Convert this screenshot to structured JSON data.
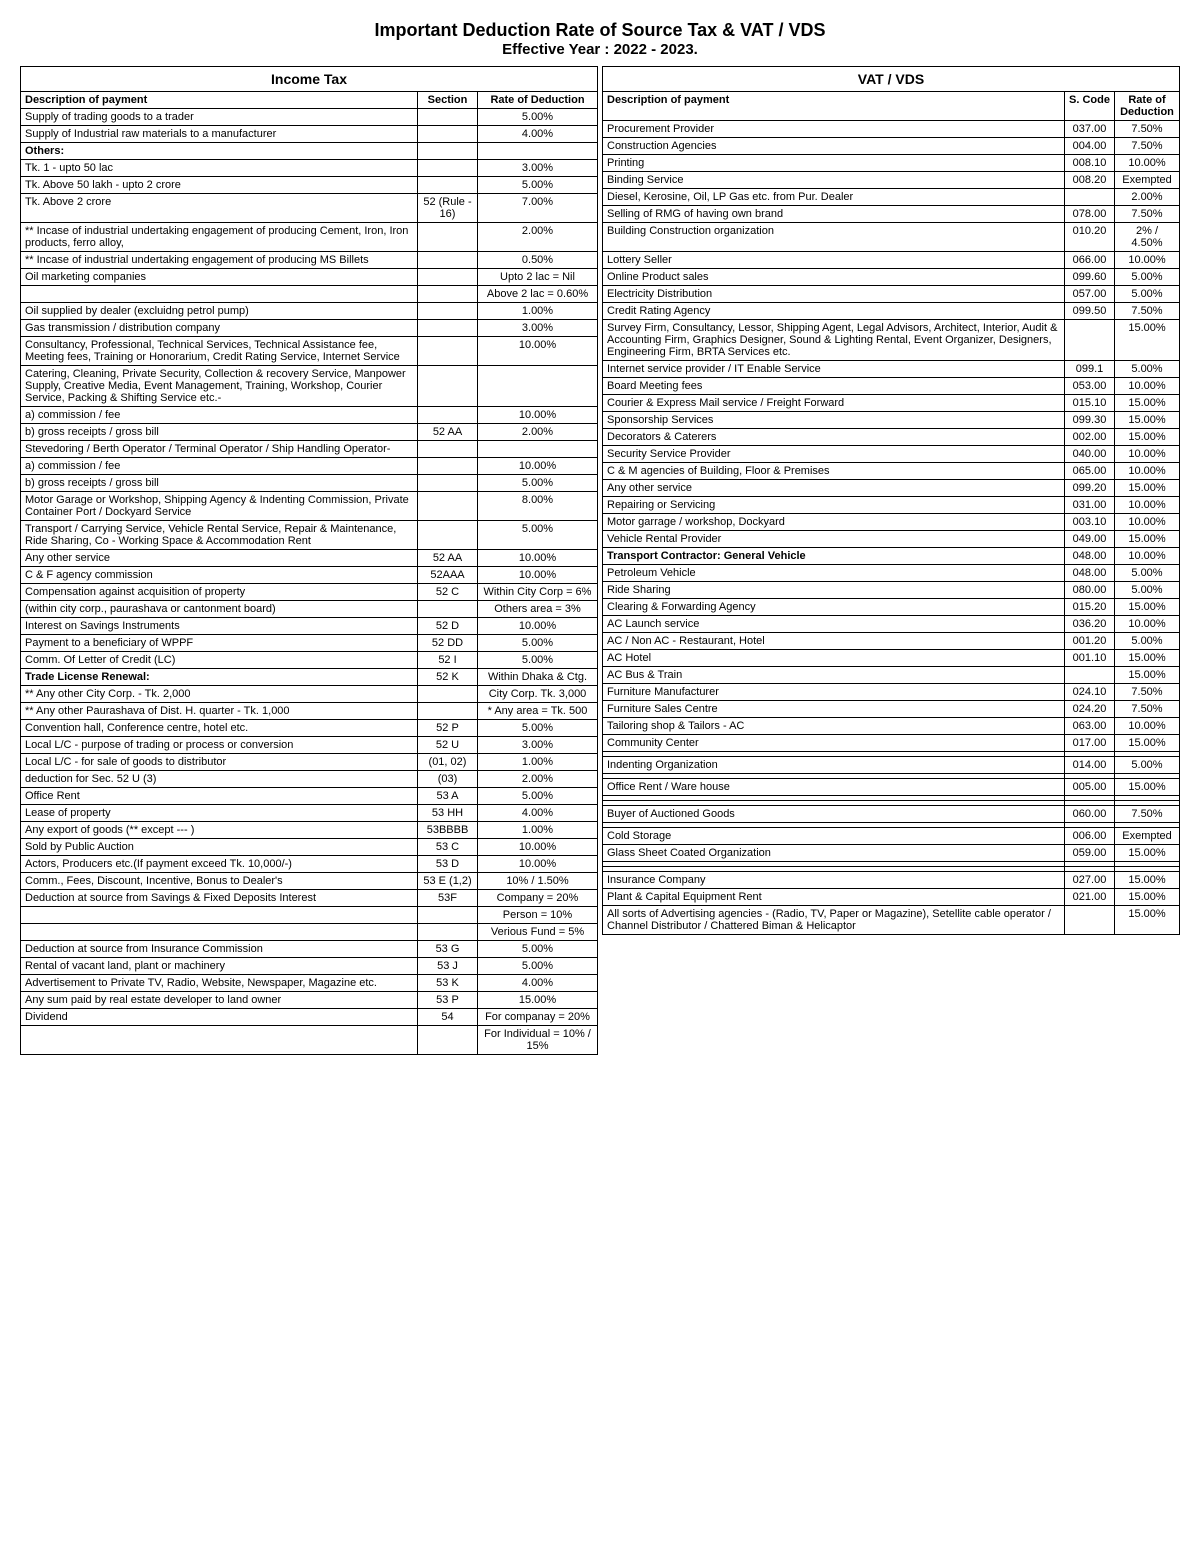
{
  "title": "Important Deduction Rate of Source Tax & VAT / VDS",
  "subtitle": "Effective Year : 2022 - 2023.",
  "left": {
    "heading": "Income Tax",
    "col1": "Description of payment",
    "col2": "Section",
    "col3": "Rate of Deduction",
    "rows": [
      {
        "desc": "Supply of trading goods to a trader",
        "sec": "",
        "rate": "5.00%"
      },
      {
        "desc": "Supply of Industrial raw materials to a manufacturer",
        "sec": "",
        "rate": "4.00%"
      },
      {
        "desc": "Others:",
        "sec": "",
        "rate": "",
        "bold": true
      },
      {
        "desc": "Tk. 1 - upto 50 lac",
        "sec": "",
        "rate": "3.00%"
      },
      {
        "desc": "Tk. Above 50 lakh - upto 2 crore",
        "sec": "",
        "rate": "5.00%"
      },
      {
        "desc": "Tk. Above 2 crore",
        "sec": "52 (Rule - 16)",
        "rate": "7.00%",
        "secRowspan": 6
      },
      {
        "desc": "** Incase of industrial undertaking engagement of producing Cement, Iron, Iron products, ferro alloy,",
        "sec": "",
        "rate": "2.00%"
      },
      {
        "desc": "** Incase of industrial undertaking engagement of producing MS Billets",
        "sec": "",
        "rate": "0.50%"
      },
      {
        "desc": "Oil marketing companies",
        "sec": "",
        "rate": "Upto 2 lac = Nil"
      },
      {
        "desc": "",
        "sec": "",
        "rate": "Above 2 lac = 0.60%"
      },
      {
        "desc": "Oil supplied by dealer (excluidng petrol pump)",
        "sec": "",
        "rate": "1.00%"
      },
      {
        "desc": "Gas transmission / distribution company",
        "sec": "",
        "rate": "3.00%"
      },
      {
        "desc": "Consultancy, Professional, Technical Services, Technical Assistance fee, Meeting fees, Training or Honorarium, Credit Rating Service, Internet Service",
        "sec": "",
        "rate": "10.00%"
      },
      {
        "desc": "Catering, Cleaning, Private Security, Collection & recovery Service, Manpower Supply, Creative Media, Event Management, Training, Workshop, Courier Service, Packing & Shifting Service etc.-",
        "sec": "",
        "rate": ""
      },
      {
        "desc": "a) commission / fee",
        "sec": "",
        "rate": "10.00%"
      },
      {
        "desc": "b) gross receipts / gross bill",
        "sec": "52 AA",
        "rate": "2.00%",
        "secRowspan": 1
      },
      {
        "desc": "Stevedoring / Berth Operator / Terminal Operator / Ship Handling Operator-",
        "sec": "",
        "rate": ""
      },
      {
        "desc": "a) commission / fee",
        "sec": "",
        "rate": "10.00%"
      },
      {
        "desc": "b) gross receipts / gross bill",
        "sec": "",
        "rate": "5.00%"
      },
      {
        "desc": "Motor Garage or Workshop, Shipping Agency & Indenting Commission, Private Container Port / Dockyard Service",
        "sec": "",
        "rate": "8.00%"
      },
      {
        "desc": "Transport / Carrying Service, Vehicle Rental Service, Repair & Maintenance, Ride Sharing, Co - Working Space & Accommodation Rent",
        "sec": "",
        "rate": "5.00%"
      },
      {
        "desc": "Any other service",
        "sec": "52 AA",
        "rate": "10.00%"
      },
      {
        "desc": "C & F agency commission",
        "sec": "52AAA",
        "rate": "10.00%"
      },
      {
        "desc": "Compensation against acquisition of property",
        "sec": "52 C",
        "rate": "Within City Corp = 6%"
      },
      {
        "desc": "(within city corp., paurashava or cantonment board)",
        "sec": "",
        "rate": "Others area = 3%"
      },
      {
        "desc": "Interest on Savings Instruments",
        "sec": "52 D",
        "rate": "10.00%"
      },
      {
        "desc": "Payment to a beneficiary of WPPF",
        "sec": "52 DD",
        "rate": "5.00%"
      },
      {
        "desc": "Comm. Of Letter of Credit (LC)",
        "sec": "52 I",
        "rate": "5.00%"
      },
      {
        "desc": "Trade License Renewal:",
        "sec": "52 K",
        "rate": "Within Dhaka & Ctg.",
        "bold": true
      },
      {
        "desc": "** Any other City Corp. - Tk. 2,000",
        "sec": "",
        "rate": "City Corp. Tk. 3,000"
      },
      {
        "desc": "** Any other Paurashava of Dist. H. quarter - Tk. 1,000",
        "sec": "",
        "rate": "* Any area = Tk. 500"
      },
      {
        "desc": "Convention hall, Conference centre, hotel etc.",
        "sec": "52 P",
        "rate": "5.00%"
      },
      {
        "desc": "Local L/C - purpose of trading or process or conversion",
        "sec": "52 U",
        "rate": "3.00%"
      },
      {
        "desc": "Local L/C - for sale of goods to distributor",
        "sec": "(01, 02)",
        "rate": "1.00%"
      },
      {
        "desc": "deduction for Sec. 52 U (3)",
        "sec": "(03)",
        "rate": "2.00%"
      },
      {
        "desc": "Office Rent",
        "sec": "53 A",
        "rate": "5.00%"
      },
      {
        "desc": "Lease of property",
        "sec": "53 HH",
        "rate": "4.00%"
      },
      {
        "desc": "Any export of goods (** except --- )",
        "sec": "53BBBB",
        "rate": "1.00%"
      },
      {
        "desc": "Sold by Public Auction",
        "sec": "53 C",
        "rate": "10.00%"
      },
      {
        "desc": "Actors, Producers etc.(If payment exceed Tk. 10,000/-)",
        "sec": "53 D",
        "rate": "10.00%"
      },
      {
        "desc": "Comm., Fees, Discount, Incentive, Bonus to Dealer's",
        "sec": "53 E (1,2)",
        "rate": "10% / 1.50%"
      },
      {
        "desc": "Deduction at source from Savings & Fixed Deposits Interest",
        "sec": "53F",
        "rate": "Company = 20%"
      },
      {
        "desc": "",
        "sec": "",
        "rate": "Person = 10%"
      },
      {
        "desc": "",
        "sec": "",
        "rate": "Verious Fund = 5%"
      },
      {
        "desc": "Deduction at source from Insurance Commission",
        "sec": "53 G",
        "rate": "5.00%"
      },
      {
        "desc": "Rental of vacant land, plant or machinery",
        "sec": "53 J",
        "rate": "5.00%"
      },
      {
        "desc": "Advertisement to Private TV, Radio, Website, Newspaper, Magazine etc.",
        "sec": "53 K",
        "rate": "4.00%"
      },
      {
        "desc": "Any sum paid by real estate developer to land owner",
        "sec": "53 P",
        "rate": "15.00%"
      },
      {
        "desc": "Dividend",
        "sec": "54",
        "rate": "For companay = 20%"
      },
      {
        "desc": "",
        "sec": "",
        "rate": "For Individual = 10% / 15%"
      }
    ]
  },
  "right": {
    "heading": "VAT / VDS",
    "col1": "Description of payment",
    "col2": "S. Code",
    "col3": "Rate of Deduction",
    "rows": [
      {
        "desc": "Procurement Provider",
        "code": "037.00",
        "rate": "7.50%"
      },
      {
        "desc": "Construction Agencies",
        "code": "004.00",
        "rate": "7.50%"
      },
      {
        "desc": "Printing",
        "code": "008.10",
        "rate": "10.00%"
      },
      {
        "desc": "Binding Service",
        "code": "008.20",
        "rate": "Exempted"
      },
      {
        "desc": "Diesel, Kerosine, Oil, LP Gas etc. from Pur. Dealer",
        "code": "",
        "rate": "2.00%"
      },
      {
        "desc": "Selling of RMG of having own brand",
        "code": "078.00",
        "rate": "7.50%"
      },
      {
        "desc": "Building Construction organization",
        "code": "010.20",
        "rate": "2% / 4.50%"
      },
      {
        "desc": "Lottery Seller",
        "code": "066.00",
        "rate": "10.00%"
      },
      {
        "desc": "Online Product sales",
        "code": "099.60",
        "rate": "5.00%"
      },
      {
        "desc": "Electricity Distribution",
        "code": "057.00",
        "rate": "5.00%"
      },
      {
        "desc": "Credit Rating Agency",
        "code": "099.50",
        "rate": "7.50%"
      },
      {
        "desc": "Survey Firm, Consultancy, Lessor, Shipping Agent, Legal Advisors, Architect, Interior, Audit & Accounting Firm, Graphics Designer, Sound & Lighting Rental, Event Organizer, Designers, Engineering Firm, BRTA Services etc.",
        "code": "",
        "rate": "15.00%"
      },
      {
        "desc": "Internet service provider / IT Enable Service",
        "code": "099.1",
        "rate": "5.00%"
      },
      {
        "desc": "Board Meeting fees",
        "code": "053.00",
        "rate": "10.00%"
      },
      {
        "desc": "Courier & Express Mail service / Freight Forward",
        "code": "015.10",
        "rate": "15.00%"
      },
      {
        "desc": "Sponsorship Services",
        "code": "099.30",
        "rate": "15.00%"
      },
      {
        "desc": "Decorators & Caterers",
        "code": "002.00",
        "rate": "15.00%"
      },
      {
        "desc": "Security Service Provider",
        "code": "040.00",
        "rate": "10.00%"
      },
      {
        "desc": "C & M agencies of Building, Floor & Premises",
        "code": "065.00",
        "rate": "10.00%"
      },
      {
        "desc": "Any other service",
        "code": "099.20",
        "rate": "15.00%"
      },
      {
        "desc": "Repairing or Servicing",
        "code": "031.00",
        "rate": "10.00%"
      },
      {
        "desc": "Motor garrage / workshop, Dockyard",
        "code": "003.10",
        "rate": "10.00%"
      },
      {
        "desc": "Vehicle Rental Provider",
        "code": "049.00",
        "rate": "15.00%"
      },
      {
        "desc": "Transport Contractor: General Vehicle",
        "code": "048.00",
        "rate": "10.00%",
        "bold": true
      },
      {
        "desc": "Petroleum Vehicle",
        "code": "048.00",
        "rate": "5.00%"
      },
      {
        "desc": "Ride Sharing",
        "code": "080.00",
        "rate": "5.00%"
      },
      {
        "desc": "Clearing & Forwarding Agency",
        "code": "015.20",
        "rate": "15.00%"
      },
      {
        "desc": "AC Launch service",
        "code": "036.20",
        "rate": "10.00%"
      },
      {
        "desc": "AC / Non AC - Restaurant, Hotel",
        "code": "001.20",
        "rate": "5.00%"
      },
      {
        "desc": "AC Hotel",
        "code": "001.10",
        "rate": "15.00%"
      },
      {
        "desc": "AC Bus & Train",
        "code": "",
        "rate": "15.00%"
      },
      {
        "desc": "Furniture Manufacturer",
        "code": "024.10",
        "rate": "7.50%"
      },
      {
        "desc": "Furniture Sales Centre",
        "code": "024.20",
        "rate": "7.50%"
      },
      {
        "desc": "Tailoring shop & Tailors - AC",
        "code": "063.00",
        "rate": "10.00%"
      },
      {
        "desc": "Community Center",
        "code": "017.00",
        "rate": "15.00%"
      },
      {
        "desc": "",
        "code": "",
        "rate": ""
      },
      {
        "desc": "Indenting Organization",
        "code": "014.00",
        "rate": "5.00%"
      },
      {
        "desc": "",
        "code": "",
        "rate": ""
      },
      {
        "desc": "Office Rent / Ware house",
        "code": "005.00",
        "rate": "15.00%"
      },
      {
        "desc": "",
        "code": "",
        "rate": ""
      },
      {
        "desc": "",
        "code": "",
        "rate": ""
      },
      {
        "desc": "Buyer of Auctioned Goods",
        "code": "060.00",
        "rate": "7.50%"
      },
      {
        "desc": "",
        "code": "",
        "rate": ""
      },
      {
        "desc": "Cold Storage",
        "code": "006.00",
        "rate": "Exempted"
      },
      {
        "desc": "Glass Sheet Coated Organization",
        "code": "059.00",
        "rate": "15.00%"
      },
      {
        "desc": "",
        "code": "",
        "rate": ""
      },
      {
        "desc": "",
        "code": "",
        "rate": ""
      },
      {
        "desc": "Insurance Company",
        "code": "027.00",
        "rate": "15.00%"
      },
      {
        "desc": "Plant & Capital Equipment Rent",
        "code": "021.00",
        "rate": "15.00%"
      },
      {
        "desc": "All sorts of Advertising agencies - (Radio, TV, Paper or Magazine), Setellite cable operator / Channel Distributor / Chattered Biman & Helicaptor",
        "code": "",
        "rate": "15.00%"
      }
    ]
  }
}
